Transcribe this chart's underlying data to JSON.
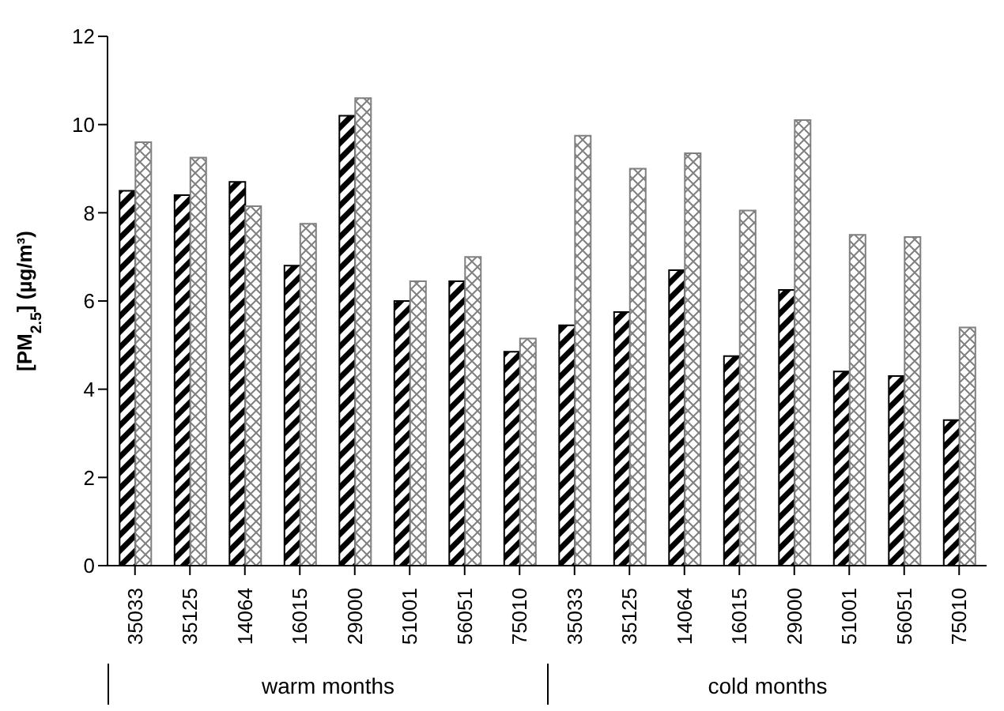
{
  "chart_data": {
    "type": "bar",
    "ylabel": "[PM$_{2.5}$] (µg/m³)",
    "categories": [
      "35033",
      "35125",
      "14064",
      "16015",
      "29000",
      "51001",
      "56051",
      "75010",
      "35033",
      "35125",
      "14064",
      "16015",
      "29000",
      "51001",
      "56051",
      "75010"
    ],
    "series": [
      {
        "color": "#000000",
        "values": [
          8.5,
          8.4,
          8.7,
          6.8,
          10.2,
          6.0,
          6.45,
          4.85,
          5.45,
          5.75,
          6.7,
          4.75,
          6.25,
          4.4,
          4.3,
          3.3
        ]
      },
      {
        "color": "#808080",
        "values": [
          9.6,
          9.25,
          8.15,
          7.75,
          10.6,
          6.45,
          7.0,
          5.15,
          9.75,
          9.0,
          9.35,
          8.05,
          10.1,
          7.5,
          7.45,
          5.4
        ]
      }
    ],
    "annotations": [
      "warm months",
      "cold months"
    ],
    "ylim": [
      0,
      12
    ],
    "yticks": [
      0,
      2,
      4,
      6,
      8,
      10,
      12
    ]
  }
}
